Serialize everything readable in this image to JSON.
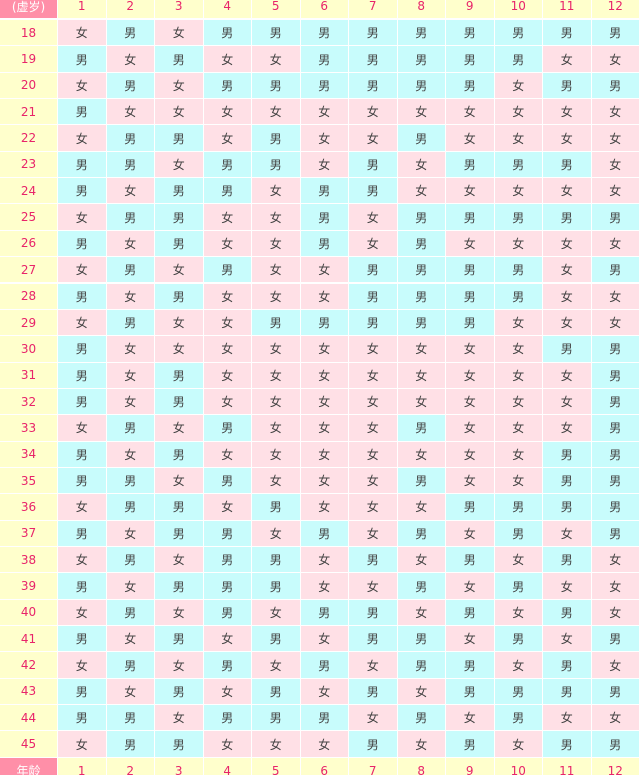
{
  "header": {
    "corner": "(虚岁)",
    "months": [
      1,
      2,
      3,
      4,
      5,
      6,
      7,
      8,
      9,
      10,
      11,
      12
    ]
  },
  "rows": [
    {
      "age": 18,
      "cells": [
        "女",
        "男",
        "女",
        "男",
        "男",
        "男",
        "男",
        "男",
        "男",
        "男",
        "男",
        "男"
      ]
    },
    {
      "age": 19,
      "cells": [
        "男",
        "女",
        "男",
        "女",
        "女",
        "男",
        "男",
        "男",
        "男",
        "男",
        "女",
        "女"
      ]
    },
    {
      "age": 20,
      "cells": [
        "女",
        "男",
        "女",
        "男",
        "男",
        "男",
        "男",
        "男",
        "男",
        "女",
        "男",
        "男"
      ]
    },
    {
      "age": 21,
      "cells": [
        "男",
        "女",
        "女",
        "女",
        "女",
        "女",
        "女",
        "女",
        "女",
        "女",
        "女",
        "女"
      ]
    },
    {
      "age": 22,
      "cells": [
        "女",
        "男",
        "男",
        "女",
        "男",
        "女",
        "女",
        "男",
        "女",
        "女",
        "女",
        "女"
      ]
    },
    {
      "age": 23,
      "cells": [
        "男",
        "男",
        "女",
        "男",
        "男",
        "女",
        "男",
        "女",
        "男",
        "男",
        "男",
        "女"
      ]
    },
    {
      "age": 24,
      "cells": [
        "男",
        "女",
        "男",
        "男",
        "女",
        "男",
        "男",
        "女",
        "女",
        "女",
        "女",
        "女"
      ]
    },
    {
      "age": 25,
      "cells": [
        "女",
        "男",
        "男",
        "女",
        "女",
        "男",
        "女",
        "男",
        "男",
        "男",
        "男",
        "男"
      ]
    },
    {
      "age": 26,
      "cells": [
        "男",
        "女",
        "男",
        "女",
        "女",
        "男",
        "女",
        "男",
        "女",
        "女",
        "女",
        "女"
      ]
    },
    {
      "age": 27,
      "cells": [
        "女",
        "男",
        "女",
        "男",
        "女",
        "女",
        "男",
        "男",
        "男",
        "男",
        "女",
        "男"
      ]
    },
    {
      "age": 28,
      "cells": [
        "男",
        "女",
        "男",
        "女",
        "女",
        "女",
        "男",
        "男",
        "男",
        "男",
        "女",
        "女"
      ]
    },
    {
      "age": 29,
      "cells": [
        "女",
        "男",
        "女",
        "女",
        "男",
        "男",
        "男",
        "男",
        "男",
        "女",
        "女",
        "女"
      ]
    },
    {
      "age": 30,
      "cells": [
        "男",
        "女",
        "女",
        "女",
        "女",
        "女",
        "女",
        "女",
        "女",
        "女",
        "男",
        "男"
      ]
    },
    {
      "age": 31,
      "cells": [
        "男",
        "女",
        "男",
        "女",
        "女",
        "女",
        "女",
        "女",
        "女",
        "女",
        "女",
        "男"
      ]
    },
    {
      "age": 32,
      "cells": [
        "男",
        "女",
        "男",
        "女",
        "女",
        "女",
        "女",
        "女",
        "女",
        "女",
        "女",
        "男"
      ]
    },
    {
      "age": 33,
      "cells": [
        "女",
        "男",
        "女",
        "男",
        "女",
        "女",
        "女",
        "男",
        "女",
        "女",
        "女",
        "男"
      ]
    },
    {
      "age": 34,
      "cells": [
        "男",
        "女",
        "男",
        "女",
        "女",
        "女",
        "女",
        "女",
        "女",
        "女",
        "男",
        "男"
      ]
    },
    {
      "age": 35,
      "cells": [
        "男",
        "男",
        "女",
        "男",
        "女",
        "女",
        "女",
        "男",
        "女",
        "女",
        "男",
        "男"
      ]
    },
    {
      "age": 36,
      "cells": [
        "女",
        "男",
        "男",
        "女",
        "男",
        "女",
        "女",
        "女",
        "男",
        "男",
        "男",
        "男"
      ]
    },
    {
      "age": 37,
      "cells": [
        "男",
        "女",
        "男",
        "男",
        "女",
        "男",
        "女",
        "男",
        "女",
        "男",
        "女",
        "男"
      ]
    },
    {
      "age": 38,
      "cells": [
        "女",
        "男",
        "女",
        "男",
        "男",
        "女",
        "男",
        "女",
        "男",
        "女",
        "男",
        "女"
      ]
    },
    {
      "age": 39,
      "cells": [
        "男",
        "女",
        "男",
        "男",
        "男",
        "女",
        "女",
        "男",
        "女",
        "男",
        "女",
        "女"
      ]
    },
    {
      "age": 40,
      "cells": [
        "女",
        "男",
        "女",
        "男",
        "女",
        "男",
        "男",
        "女",
        "男",
        "女",
        "男",
        "女"
      ]
    },
    {
      "age": 41,
      "cells": [
        "男",
        "女",
        "男",
        "女",
        "男",
        "女",
        "男",
        "男",
        "女",
        "男",
        "女",
        "男"
      ]
    },
    {
      "age": 42,
      "cells": [
        "女",
        "男",
        "女",
        "男",
        "女",
        "男",
        "女",
        "男",
        "男",
        "女",
        "男",
        "女"
      ]
    },
    {
      "age": 43,
      "cells": [
        "男",
        "女",
        "男",
        "女",
        "男",
        "女",
        "男",
        "女",
        "男",
        "男",
        "男",
        "男"
      ]
    },
    {
      "age": 44,
      "cells": [
        "男",
        "男",
        "女",
        "男",
        "男",
        "男",
        "女",
        "男",
        "女",
        "男",
        "女",
        "女"
      ]
    },
    {
      "age": 45,
      "cells": [
        "女",
        "男",
        "男",
        "女",
        "女",
        "女",
        "男",
        "女",
        "男",
        "女",
        "男",
        "男"
      ]
    }
  ],
  "footer": {
    "corner": "年龄",
    "months": [
      1,
      2,
      3,
      4,
      5,
      6,
      7,
      8,
      9,
      10,
      11,
      12
    ]
  }
}
